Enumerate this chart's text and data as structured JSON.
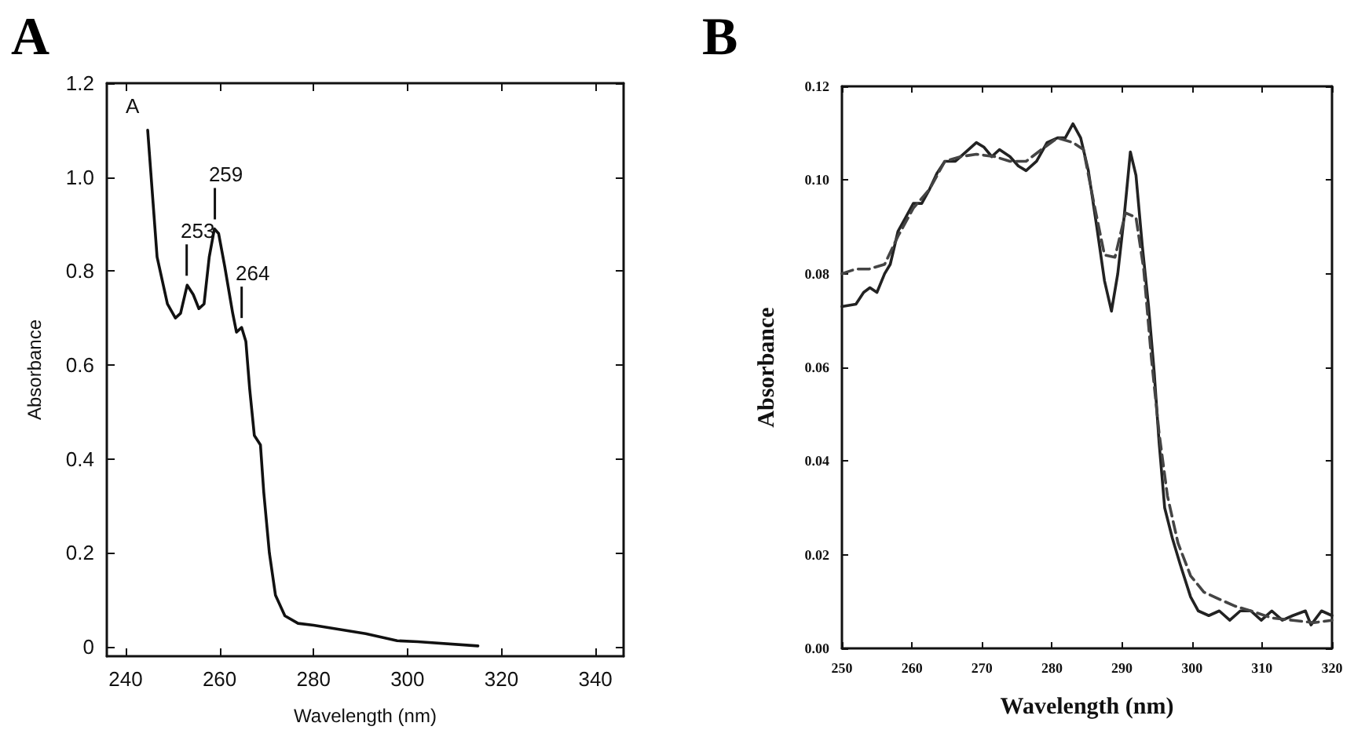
{
  "chart_data": [
    {
      "type": "line",
      "title": "A",
      "xlabel": "Wavelength (nm)",
      "ylabel": "Absorbance",
      "xlim": [
        236,
        346
      ],
      "ylim": [
        -0.02,
        1.2
      ],
      "xticks": [
        240,
        260,
        280,
        300,
        320,
        340
      ],
      "yticks": [
        0,
        0.2,
        0.4,
        0.6,
        0.8,
        {
          "value": 1,
          "label": "1.0"
        },
        1.2
      ],
      "marker": "none",
      "annotations": [
        "A",
        {
          "text": "253",
          "x": 253,
          "y": 0.77
        },
        {
          "text": "259",
          "x": 259,
          "y": 0.89
        },
        {
          "text": "264",
          "x": 264.7,
          "y": 0.68
        }
      ],
      "series": [
        {
          "color": "#111111",
          "line_style": "solid",
          "x": [
            244.7,
            246.7,
            248.9,
            250.6,
            251.7,
            253.1,
            254.4,
            255.6,
            256.7,
            257.8,
            258.9,
            259.8,
            261.1,
            262.8,
            263.6,
            264.7,
            265.6,
            266.4,
            267.4,
            268.7,
            269.4,
            270.6,
            271.9,
            273.9,
            276.7,
            280,
            284.4,
            291.1,
            297.8,
            302.2,
            315
          ],
          "values": [
            1.1,
            0.83,
            0.73,
            0.7,
            0.71,
            0.77,
            0.75,
            0.72,
            0.73,
            0.83,
            0.89,
            0.88,
            0.81,
            0.71,
            0.67,
            0.68,
            0.65,
            0.55,
            0.45,
            0.43,
            0.33,
            0.2,
            0.11,
            0.066,
            0.05,
            0.046,
            0.039,
            0.028,
            0.013,
            0.011,
            0.002
          ]
        }
      ]
    },
    {
      "type": "line",
      "title": "B",
      "xlabel": "Wavelength (nm)",
      "ylabel": "Absorbance",
      "xlim": [
        250,
        320
      ],
      "ylim": [
        0,
        0.12
      ],
      "xticks": [
        250,
        260,
        270,
        280,
        290,
        300,
        310,
        320
      ],
      "yticks": [
        {
          "value": 0,
          "label": "0.00"
        },
        {
          "value": 0.02,
          "label": "0.02"
        },
        {
          "value": 0.04,
          "label": "0.04"
        },
        {
          "value": 0.06,
          "label": "0.06"
        },
        {
          "value": 0.08,
          "label": "0.08"
        },
        {
          "value": 0.1,
          "label": "0.10"
        },
        {
          "value": 0.12,
          "label": "0.12"
        }
      ],
      "marker": "none",
      "series": [
        {
          "color": "#222222",
          "line_style": "solid",
          "x": [
            250,
            252,
            253.1,
            254,
            255,
            256.1,
            256.9,
            258,
            259.1,
            260.2,
            261.4,
            262.5,
            263.6,
            264.7,
            266.2,
            267.7,
            269.2,
            270.3,
            271.4,
            272.5,
            274,
            275.2,
            276.3,
            277.8,
            279.3,
            280.8,
            281.9,
            283,
            284.1,
            285.2,
            286.4,
            287.5,
            288.5,
            289.4,
            290.3,
            291.2,
            292,
            292.9,
            293.8,
            294.6,
            295.3,
            296.1,
            297.2,
            298.3,
            299.8,
            300.9,
            302.4,
            303.9,
            305.4,
            306.9,
            308.4,
            309.9,
            311.4,
            312.9,
            314.4,
            316.2,
            317,
            318.5,
            320
          ],
          "values": [
            0.073,
            0.0735,
            0.076,
            0.077,
            0.076,
            0.08,
            0.082,
            0.089,
            0.092,
            0.095,
            0.095,
            0.098,
            0.1015,
            0.104,
            0.104,
            0.106,
            0.108,
            0.107,
            0.105,
            0.1065,
            0.105,
            0.103,
            0.102,
            0.104,
            0.108,
            0.109,
            0.109,
            0.112,
            0.109,
            0.102,
            0.09,
            0.0785,
            0.072,
            0.08,
            0.092,
            0.106,
            0.101,
            0.086,
            0.073,
            0.059,
            0.044,
            0.03,
            0.0235,
            0.018,
            0.011,
            0.008,
            0.007,
            0.008,
            0.006,
            0.008,
            0.008,
            0.006,
            0.008,
            0.006,
            0.007,
            0.008,
            0.005,
            0.008,
            0.007
          ]
        },
        {
          "color": "#444444",
          "line_style": "dashed",
          "x": [
            250,
            252,
            253.9,
            256.1,
            258,
            260.2,
            262.5,
            264.7,
            267,
            269.2,
            271.8,
            274,
            276.3,
            278.5,
            280.8,
            283,
            284.5,
            286,
            287.5,
            289,
            290.5,
            292,
            293.1,
            294.2,
            295.3,
            296.5,
            298,
            299.8,
            301.7,
            303.9,
            306.2,
            308.4,
            311.4,
            314.4,
            317.4,
            320
          ],
          "values": [
            0.08,
            0.081,
            0.081,
            0.082,
            0.088,
            0.094,
            0.098,
            0.104,
            0.105,
            0.1055,
            0.105,
            0.104,
            0.104,
            0.1065,
            0.109,
            0.108,
            0.1065,
            0.095,
            0.084,
            0.0835,
            0.093,
            0.092,
            0.081,
            0.062,
            0.046,
            0.0325,
            0.0225,
            0.0155,
            0.012,
            0.0105,
            0.009,
            0.008,
            0.0065,
            0.006,
            0.0055,
            0.006
          ]
        }
      ]
    }
  ]
}
